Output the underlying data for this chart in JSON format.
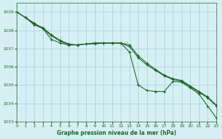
{
  "title": "Graphe pression niveau de la mer (hPa)",
  "background_color": "#d6eff5",
  "grid_color": "#aad4dc",
  "line_color": "#1a6620",
  "xlim": [
    0,
    23
  ],
  "ylim": [
    1033,
    1039.5
  ],
  "yticks": [
    1033,
    1034,
    1035,
    1036,
    1037,
    1038,
    1039
  ],
  "xticks": [
    0,
    1,
    2,
    3,
    4,
    5,
    6,
    7,
    8,
    9,
    10,
    11,
    12,
    13,
    14,
    15,
    16,
    17,
    18,
    19,
    20,
    21,
    22,
    23
  ],
  "series": [
    [
      1039.0,
      1038.7,
      1038.4,
      1038.1,
      1037.5,
      1037.3,
      1037.2,
      1037.2,
      1037.25,
      1037.25,
      1037.3,
      1037.3,
      1037.3,
      1036.8,
      1035.0,
      1034.7,
      1034.65,
      1034.65,
      1035.2,
      1035.15,
      1034.85,
      1034.5,
      1033.85,
      1033.2
    ],
    [
      1039.0,
      1038.7,
      1038.35,
      1038.15,
      1037.75,
      1037.45,
      1037.25,
      1037.2,
      1037.25,
      1037.3,
      1037.3,
      1037.3,
      1037.3,
      1037.1,
      1036.5,
      1036.1,
      1035.8,
      1035.5,
      1035.3,
      1035.2,
      1034.9,
      1034.6,
      1034.3,
      1033.85
    ],
    [
      1039.0,
      1038.7,
      1038.3,
      1038.1,
      1037.7,
      1037.4,
      1037.2,
      1037.2,
      1037.25,
      1037.3,
      1037.3,
      1037.3,
      1037.3,
      1037.2,
      1036.6,
      1036.2,
      1035.85,
      1035.55,
      1035.35,
      1035.25,
      1034.95,
      1034.65,
      1034.35,
      1033.9
    ]
  ]
}
